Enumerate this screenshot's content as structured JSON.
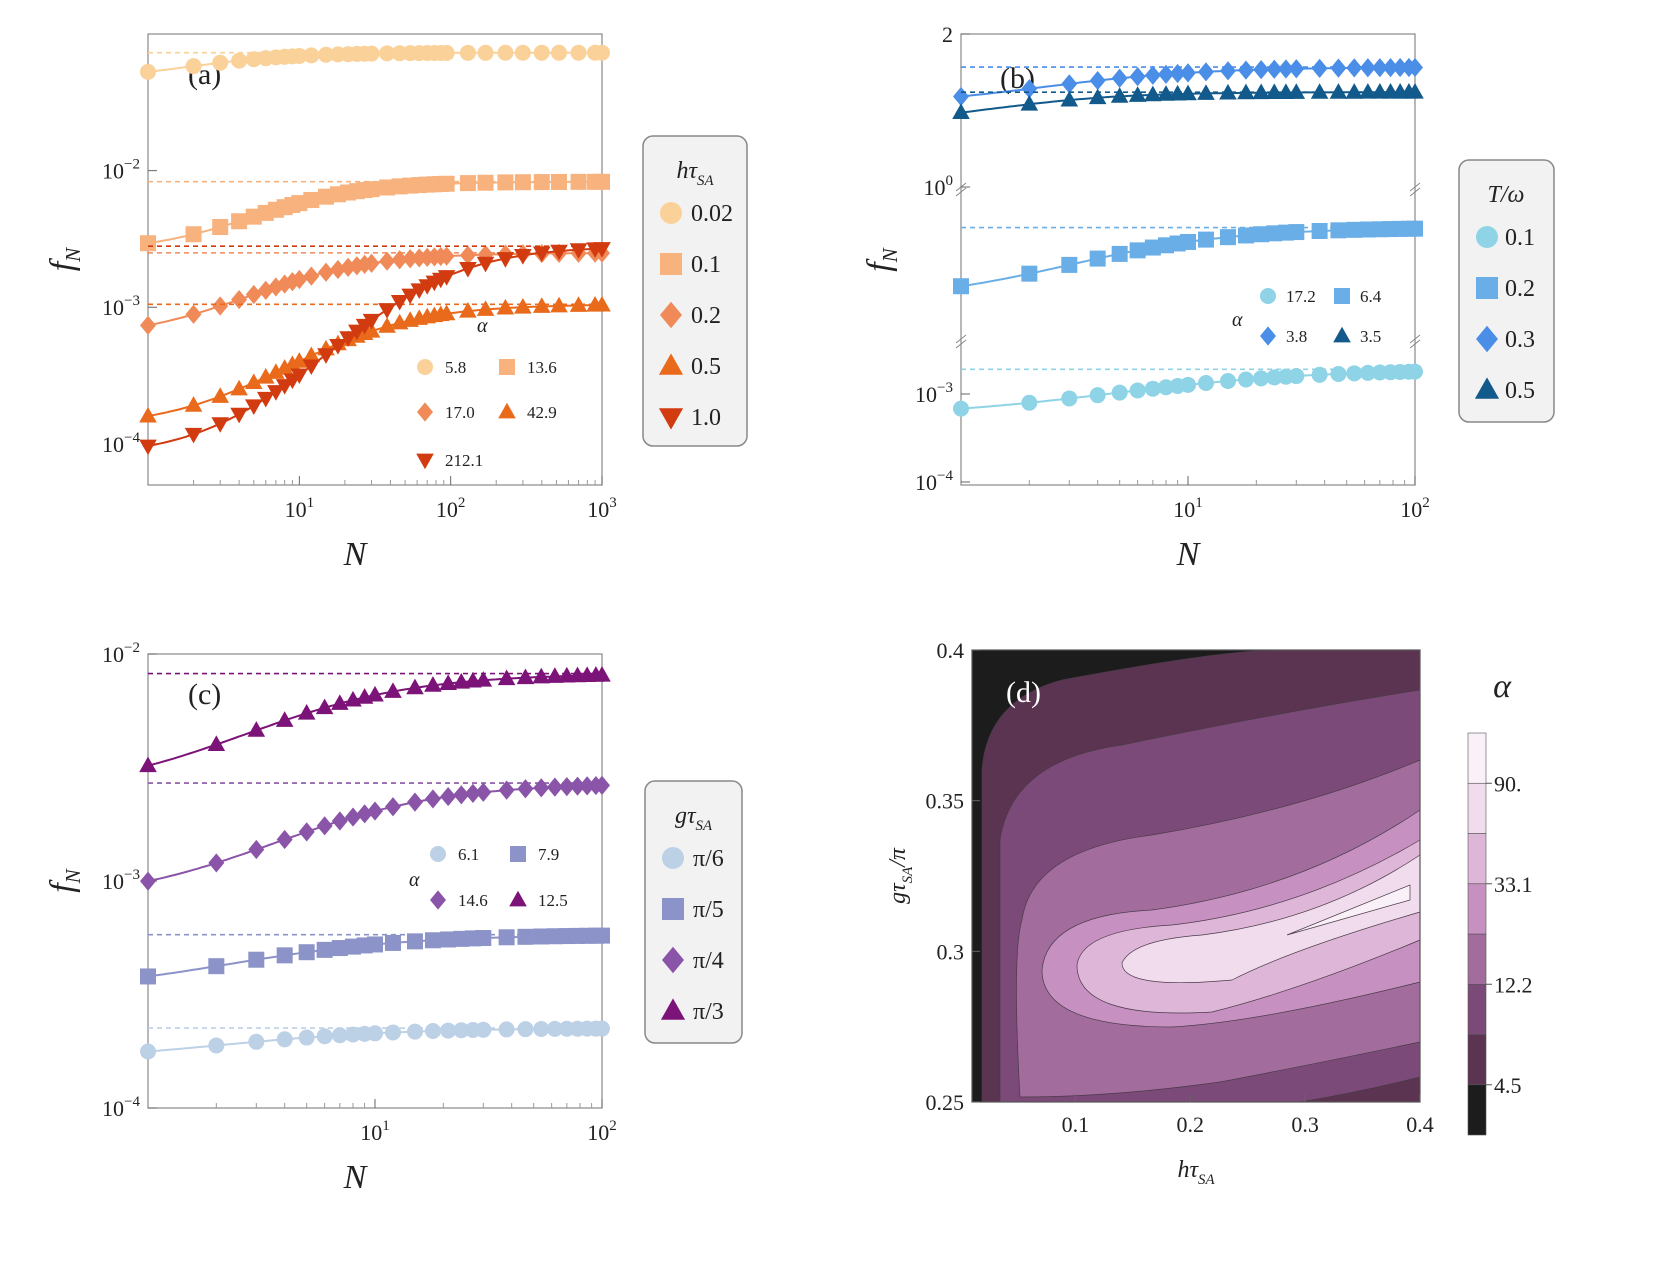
{
  "chart_data": [
    {
      "id": "a",
      "type": "line",
      "panel_label": "(a)",
      "xlabel": "N",
      "ylabel": "f_N",
      "xscale": "log",
      "yscale": "log",
      "xlim": [
        1,
        1000
      ],
      "ylim": [
        5e-05,
        0.1
      ],
      "x_ticks": [
        {
          "v": 10,
          "label": "10",
          "sup": "1"
        },
        {
          "v": 100,
          "label": "10",
          "sup": "2"
        },
        {
          "v": 1000,
          "label": "10",
          "sup": "3"
        }
      ],
      "y_ticks": [
        {
          "v": 0.0001,
          "label": "10",
          "sup": "−4"
        },
        {
          "v": 0.001,
          "label": "10",
          "sup": "−3"
        },
        {
          "v": 0.01,
          "label": "10",
          "sup": "−2"
        }
      ],
      "legend": {
        "title_main": "hτ",
        "title_sub": "SA",
        "placement": "right"
      },
      "alpha_symbol": "α",
      "series": [
        {
          "name": "0.02",
          "marker": "circle",
          "color": "#fbd19a",
          "alpha_label": "5.8",
          "f0": 0.045,
          "finf": 0.073,
          "n0": 2.2,
          "p": 1.2
        },
        {
          "name": "0.1",
          "marker": "square",
          "color": "#f7b27d",
          "alpha_label": "13.6",
          "f0": 0.0025,
          "finf": 0.0083,
          "n0": 8,
          "p": 1.2
        },
        {
          "name": "0.2",
          "marker": "diamond",
          "color": "#f08a59",
          "alpha_label": "17.0",
          "f0": 0.00058,
          "finf": 0.0025,
          "n0": 9,
          "p": 1.1
        },
        {
          "name": "0.5",
          "marker": "triangle-up",
          "color": "#ea6a1b",
          "alpha_label": "42.9",
          "f0": 0.00013,
          "finf": 0.00105,
          "n0": 22,
          "p": 1.1
        },
        {
          "name": "1.0",
          "marker": "triangle-down",
          "color": "#d23b10",
          "alpha_label": "212.1",
          "f0": 8e-05,
          "finf": 0.0028,
          "n0": 70,
          "p": 1.2
        }
      ]
    },
    {
      "id": "b",
      "type": "line",
      "panel_label": "(b)",
      "xlabel": "N",
      "ylabel": "f_N",
      "xscale": "log",
      "yscale": "broken-log",
      "xlim": [
        1,
        100
      ],
      "x_ticks": [
        {
          "v": 10,
          "label": "10",
          "sup": "1"
        },
        {
          "v": 100,
          "label": "10",
          "sup": "2"
        }
      ],
      "y_tick_labels": [
        {
          "label": "2",
          "sup": ""
        },
        {
          "label": "10",
          "sup": "0"
        },
        {
          "label": "10",
          "sup": "−3"
        },
        {
          "label": "10",
          "sup": "−4"
        }
      ],
      "legend": {
        "title": "T/ω",
        "placement": "right"
      },
      "alpha_symbol": "α",
      "series": [
        {
          "name": "0.1",
          "marker": "circle",
          "color": "#8ed3e6",
          "alpha_label": "17.2",
          "f0": 0.00045,
          "finf": 0.0013,
          "n0": 8,
          "p": 1
        },
        {
          "name": "0.2",
          "marker": "square",
          "color": "#6aaee8",
          "alpha_label": "6.4",
          "f0": 0.36,
          "finf": 0.71,
          "n0": 4,
          "p": 1.2
        },
        {
          "name": "0.3",
          "marker": "diamond",
          "color": "#4a8ee8",
          "alpha_label": "3.8",
          "f0": 1.25,
          "finf": 1.62,
          "n0": 2.5,
          "p": 1.2
        },
        {
          "name": "0.5",
          "marker": "triangle-up",
          "color": "#135a8c",
          "alpha_label": "3.5",
          "f0": 1.12,
          "finf": 1.38,
          "n0": 1.5,
          "p": 1.5
        }
      ]
    },
    {
      "id": "c",
      "type": "line",
      "panel_label": "(c)",
      "xlabel": "N",
      "ylabel": "f_N",
      "xscale": "log",
      "yscale": "log",
      "xlim": [
        1,
        100
      ],
      "ylim": [
        0.0001,
        0.01
      ],
      "x_ticks": [
        {
          "v": 10,
          "label": "10",
          "sup": "1"
        },
        {
          "v": 100,
          "label": "10",
          "sup": "2"
        }
      ],
      "y_ticks": [
        {
          "v": 0.0001,
          "label": "10",
          "sup": "−4"
        },
        {
          "v": 0.001,
          "label": "10",
          "sup": "−3"
        },
        {
          "v": 0.01,
          "label": "10",
          "sup": "−2"
        }
      ],
      "legend": {
        "title_main": "gτ",
        "title_sub": "SA",
        "placement": "right"
      },
      "alpha_symbol": "α",
      "series": [
        {
          "name": "π/6",
          "marker": "circle",
          "color": "#bcd0e6",
          "alpha_label": "6.1",
          "f0": 0.00016,
          "finf": 0.000225,
          "n0": 2.5,
          "p": 1.1
        },
        {
          "name": "π/5",
          "marker": "square",
          "color": "#8c93c8",
          "alpha_label": "7.9",
          "f0": 0.00032,
          "finf": 0.00058,
          "n0": 3,
          "p": 1.1
        },
        {
          "name": "π/4",
          "marker": "diamond",
          "color": "#8a55a8",
          "alpha_label": "14.6",
          "f0": 0.0008,
          "finf": 0.0027,
          "n0": 6,
          "p": 1.2
        },
        {
          "name": "π/3",
          "marker": "triangle-up",
          "color": "#7c1378",
          "alpha_label": "12.5",
          "f0": 0.0024,
          "finf": 0.0082,
          "n0": 4.5,
          "p": 1.2
        }
      ]
    },
    {
      "id": "d",
      "type": "heatmap",
      "panel_label": "(d)",
      "xlabel_main": "hτ",
      "xlabel_sub": "SA",
      "ylabel_main": "gτ",
      "ylabel_sub": "SA",
      "ylabel_tail": "/π",
      "xlim": [
        0.01,
        0.4
      ],
      "ylim": [
        0.25,
        0.4
      ],
      "x_ticks": [
        "0.1",
        "0.2",
        "0.3",
        "0.4"
      ],
      "y_ticks": [
        "0.25",
        "0.3",
        "0.35",
        "0.4"
      ],
      "colorbar_title": "α",
      "colorbar_labels": [
        "4.5",
        "12.2",
        "33.1",
        "90."
      ],
      "levels": [
        "#1c1c1c",
        "#5a3450",
        "#7c4a78",
        "#a26d9c",
        "#c690c0",
        "#ddb6d8",
        "#f0dced",
        "#faf1f8"
      ]
    }
  ]
}
